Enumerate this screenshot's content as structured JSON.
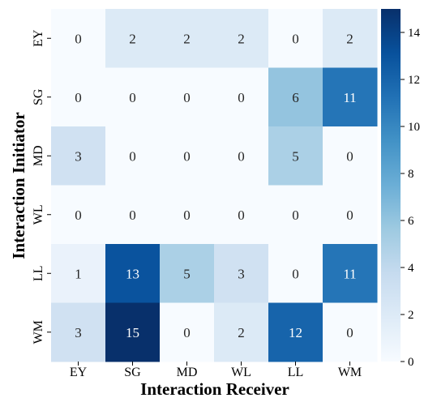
{
  "chart_data": {
    "type": "heatmap",
    "title": "",
    "xlabel": "Interaction Receiver",
    "ylabel": "Interaction Initiator",
    "x_categories": [
      "EY",
      "SG",
      "MD",
      "WL",
      "LL",
      "WM"
    ],
    "y_categories": [
      "EY",
      "SG",
      "MD",
      "WL",
      "LL",
      "WM"
    ],
    "values": [
      [
        0,
        2,
        2,
        2,
        0,
        2
      ],
      [
        0,
        0,
        0,
        0,
        6,
        11
      ],
      [
        3,
        0,
        0,
        0,
        5,
        0
      ],
      [
        0,
        0,
        0,
        0,
        0,
        0
      ],
      [
        1,
        13,
        5,
        3,
        0,
        11
      ],
      [
        3,
        15,
        0,
        2,
        12,
        0
      ]
    ],
    "colorbar": {
      "min": 0,
      "max": 15,
      "ticks": [
        "0",
        "2",
        "4",
        "6",
        "8",
        "10",
        "12",
        "14"
      ],
      "colormap": "Blues",
      "stops": [
        "#f7fbff",
        "#deebf7",
        "#c6dbef",
        "#9ecae1",
        "#6baed6",
        "#4292c6",
        "#2171b5",
        "#08519c",
        "#08306b"
      ]
    },
    "grid": false,
    "legend": "colorbar-right"
  }
}
